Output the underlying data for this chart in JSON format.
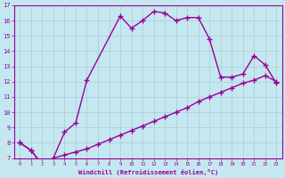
{
  "xlabel": "Windchill (Refroidissement éolien,°C)",
  "xlim": [
    -0.5,
    23.5
  ],
  "ylim": [
    7,
    17
  ],
  "yticks": [
    7,
    8,
    9,
    10,
    11,
    12,
    13,
    14,
    15,
    16,
    17
  ],
  "xticks": [
    0,
    1,
    2,
    3,
    4,
    5,
    6,
    7,
    8,
    9,
    10,
    11,
    12,
    13,
    14,
    15,
    16,
    17,
    18,
    19,
    20,
    21,
    22,
    23
  ],
  "bg_color": "#c5e8f0",
  "line_color": "#990099",
  "grid_color": "#a8ccd8",
  "line1_x": [
    0,
    1,
    2,
    3,
    4,
    5,
    6,
    9,
    10,
    11,
    12,
    13,
    14,
    15,
    16,
    17,
    18,
    19,
    20,
    21,
    22,
    23
  ],
  "line1_y": [
    8.0,
    7.5,
    6.5,
    7.0,
    8.7,
    9.3,
    12.1,
    16.3,
    15.5,
    16.0,
    16.6,
    16.5,
    16.0,
    16.2,
    16.2,
    14.8,
    12.3,
    12.3,
    12.5,
    13.7,
    13.1,
    11.9
  ],
  "line2_x": [
    0,
    1,
    2,
    3,
    4,
    5,
    6,
    7,
    8,
    9,
    10,
    11,
    12,
    13,
    14,
    15,
    16,
    17,
    18,
    19,
    20,
    21,
    22,
    23
  ],
  "line2_y": [
    8.0,
    7.5,
    6.6,
    7.0,
    7.2,
    7.4,
    7.6,
    7.9,
    8.2,
    8.5,
    8.8,
    9.1,
    9.4,
    9.7,
    10.0,
    10.3,
    10.7,
    11.0,
    11.3,
    11.6,
    11.9,
    12.1,
    12.4,
    12.0
  ],
  "marker": "+",
  "markersize": 4,
  "linewidth": 1.0
}
